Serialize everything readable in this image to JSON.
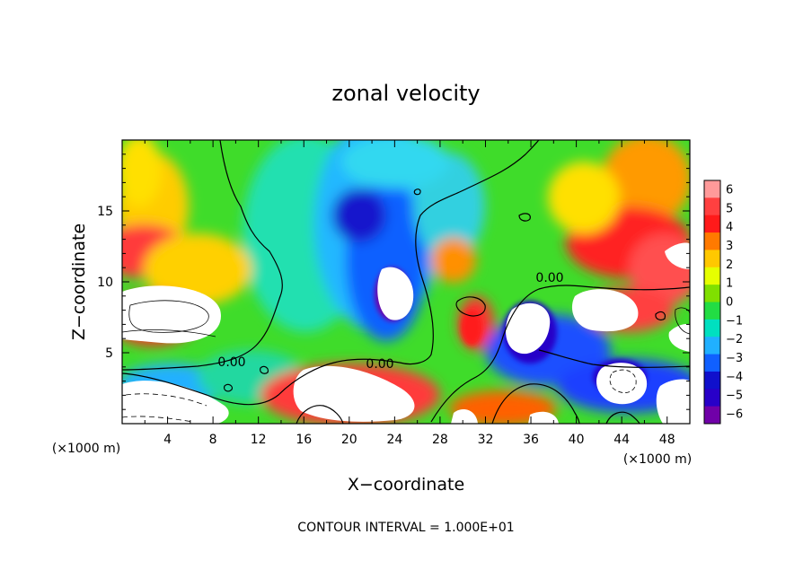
{
  "chart_data": {
    "type": "heatmap",
    "title": "zonal velocity",
    "xlabel": "X−coordinate",
    "ylabel": "Z−coordinate",
    "x_unit_left": "(×1000 m)",
    "x_unit_right": "(×1000 m)",
    "xlim": [
      0,
      50
    ],
    "ylim": [
      0,
      20
    ],
    "x_ticks": [
      4,
      8,
      12,
      16,
      20,
      24,
      28,
      32,
      36,
      40,
      44,
      48
    ],
    "y_ticks": [
      5,
      10,
      15
    ],
    "colorbar": {
      "levels": [
        6,
        5,
        4,
        3,
        2,
        1,
        0,
        -1,
        -2,
        -3,
        -4,
        -5,
        -6
      ],
      "labels": [
        "6",
        "5",
        "4",
        "3",
        "2",
        "1",
        "0",
        "−1",
        "−2",
        "−3",
        "−4",
        "−5",
        "−6"
      ],
      "colors": [
        "#ff9a9a",
        "#ff4040",
        "#ff1a1a",
        "#ff7a00",
        "#ffc800",
        "#e6ff00",
        "#80e000",
        "#22dd44",
        "#00e0c0",
        "#20b0ff",
        "#1060ff",
        "#1010cc",
        "#2800c8",
        "#7000a8"
      ]
    },
    "contour_labels": [
      "0.00",
      "0.00",
      "0.00"
    ],
    "footer": "CONTOUR INTERVAL = 1.000E+01"
  }
}
